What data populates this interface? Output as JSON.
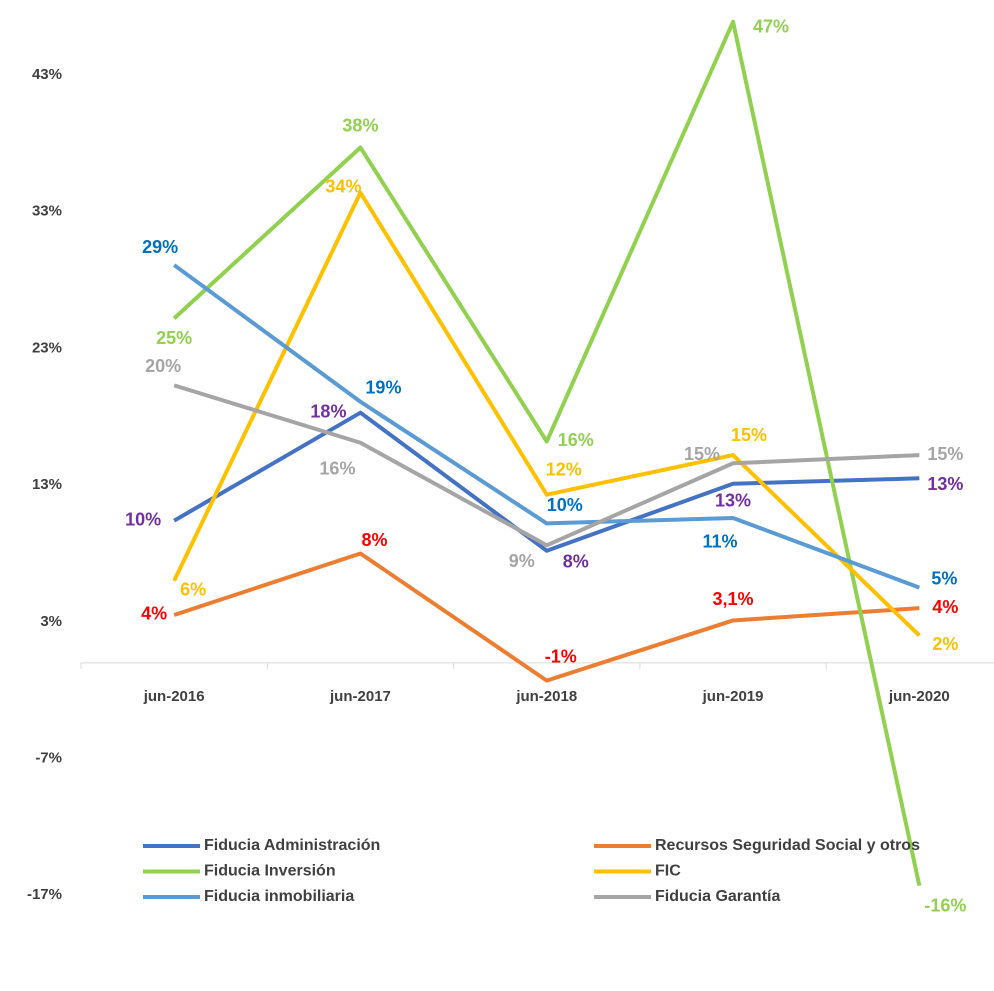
{
  "chart_data": {
    "type": "line",
    "categories": [
      "jun-2016",
      "jun-2017",
      "jun-2018",
      "jun-2019",
      "jun-2020"
    ],
    "ylim": [
      -17,
      47
    ],
    "yticks": [
      {
        "value": -17,
        "label": "-17%"
      },
      {
        "value": -7,
        "label": "-7%"
      },
      {
        "value": 3,
        "label": "3%"
      },
      {
        "value": 13,
        "label": "13%"
      },
      {
        "value": 23,
        "label": "23%"
      },
      {
        "value": 33,
        "label": "33%"
      },
      {
        "value": 43,
        "label": "43%"
      }
    ],
    "grid": false,
    "legend": "bottom",
    "series": [
      {
        "name": "Fiducia Administración",
        "color": "#4472c4",
        "label_color": "#7030a0",
        "values": [
          10.4,
          18.3,
          8.2,
          13.1,
          13.5
        ],
        "value_labels": [
          "10%",
          "18%",
          "8%",
          "13%",
          "13%"
        ]
      },
      {
        "name": "Recursos Seguridad Social y otros",
        "color": "#ed7d31",
        "label_color": "#ff0000",
        "values": [
          3.5,
          8.0,
          -1.3,
          3.1,
          4.0
        ],
        "value_labels": [
          "4%",
          "8%",
          "-1%",
          "3,1%",
          "4%"
        ]
      },
      {
        "name": "Fiducia Inversión",
        "color": "#92d050",
        "label_color": "#92d050",
        "values": [
          25.2,
          37.7,
          16.2,
          46.9,
          -16.3
        ],
        "value_labels": [
          "25%",
          "38%",
          "16%",
          "47%",
          "-16%"
        ]
      },
      {
        "name": "FIC",
        "color": "#ffc000",
        "label_color": "#ffc000",
        "values": [
          6.0,
          34.4,
          12.3,
          15.2,
          2.0
        ],
        "value_labels": [
          "6%",
          "34%",
          "12%",
          "15%",
          "2%"
        ]
      },
      {
        "name": "Fiducia inmobiliaria",
        "color": "#5b9bd5",
        "label_color": "#0070c0",
        "values": [
          29.1,
          19.1,
          10.2,
          10.6,
          5.5
        ],
        "value_labels": [
          "29%",
          "19%",
          "10%",
          "11%",
          "5%"
        ]
      },
      {
        "name": "Fiducia Garantía",
        "color": "#a5a5a5",
        "label_color": "#a5a5a5",
        "values": [
          20.3,
          16.1,
          8.6,
          14.6,
          15.2
        ],
        "value_labels": [
          "20%",
          "16%",
          "9%",
          "15%",
          "15%"
        ]
      }
    ]
  }
}
